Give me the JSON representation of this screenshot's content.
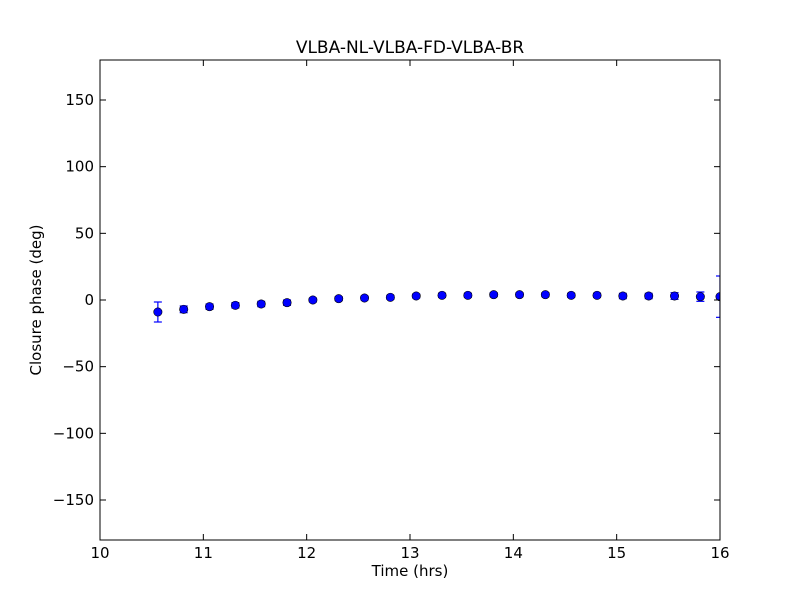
{
  "chart_data": {
    "type": "scatter",
    "title": "VLBA-NL-VLBA-FD-VLBA-BR",
    "xlabel": "Time (hrs)",
    "ylabel": "Closure phase (deg)",
    "xlim": [
      10,
      16
    ],
    "ylim": [
      -180,
      180
    ],
    "xticks": [
      10,
      11,
      12,
      13,
      14,
      15,
      16
    ],
    "xtick_labels": [
      "10",
      "11",
      "12",
      "13",
      "14",
      "15",
      "16"
    ],
    "yticks": [
      -150,
      -100,
      -50,
      0,
      50,
      100,
      150
    ],
    "ytick_labels": [
      "−150",
      "−100",
      "−50",
      "0",
      "50",
      "100",
      "150"
    ],
    "grid": false,
    "marker_color": "#0000ff",
    "errorbar_color": "#0000ff",
    "series": [
      {
        "x": [
          10.56,
          10.81,
          11.06,
          11.31,
          11.56,
          11.81,
          12.06,
          12.31,
          12.56,
          12.81,
          13.06,
          13.31,
          13.56,
          13.81,
          14.06,
          14.31,
          14.56,
          14.81,
          15.06,
          15.31,
          15.56,
          15.81,
          16.0
        ],
        "y": [
          -9,
          -7,
          -5,
          -4,
          -3,
          -2,
          0,
          1,
          1.5,
          2,
          3,
          3.5,
          3.5,
          4,
          4,
          4,
          3.5,
          3.5,
          3,
          3,
          3,
          2.5,
          2.5
        ],
        "yerr": [
          7.5,
          2.5,
          2,
          2,
          2,
          2,
          1.5,
          1.5,
          1.5,
          1.5,
          1.5,
          1.5,
          1.5,
          1.5,
          1.5,
          1.5,
          1.5,
          1.5,
          2,
          2,
          2.5,
          3.5,
          15.5
        ]
      }
    ]
  }
}
